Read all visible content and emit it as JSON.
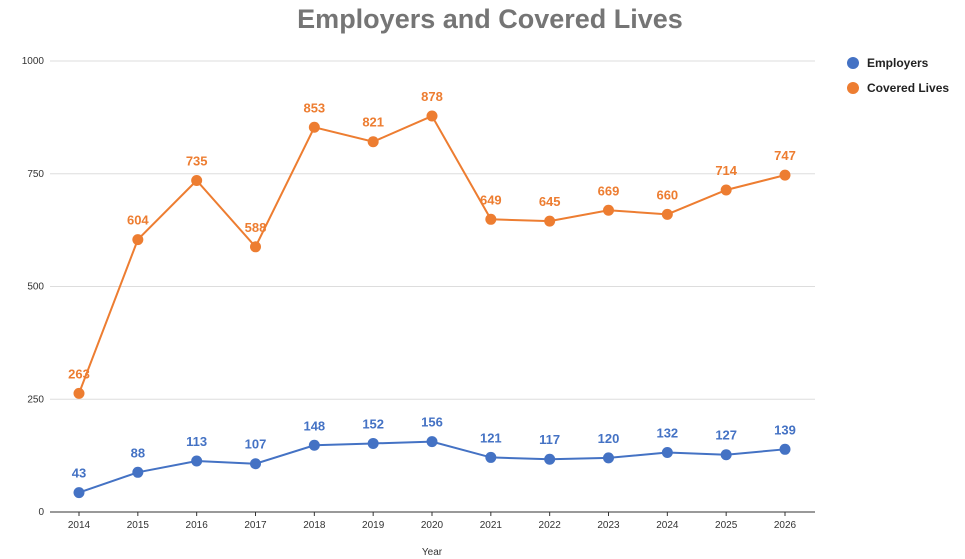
{
  "chart_data": {
    "type": "line",
    "title": "Employers and Covered Lives",
    "xlabel": "Year",
    "ylabel": "",
    "categories": [
      "2014",
      "2015",
      "2016",
      "2017",
      "2018",
      "2019",
      "2020",
      "2021",
      "2022",
      "2023",
      "2024",
      "2025",
      "2026"
    ],
    "yticks": [
      "0",
      "250",
      "500",
      "750",
      "1000"
    ],
    "ylim": [
      0,
      1000
    ],
    "grid": true,
    "legend_position": "right",
    "series": [
      {
        "name": "Employers",
        "color": "#4472C4",
        "values": [
          43,
          88,
          113,
          107,
          148,
          152,
          156,
          121,
          117,
          120,
          132,
          127,
          139
        ]
      },
      {
        "name": "Covered Lives",
        "color": "#ED7D31",
        "values": [
          263,
          604,
          735,
          588,
          853,
          821,
          878,
          649,
          645,
          669,
          660,
          714,
          747
        ]
      }
    ]
  }
}
